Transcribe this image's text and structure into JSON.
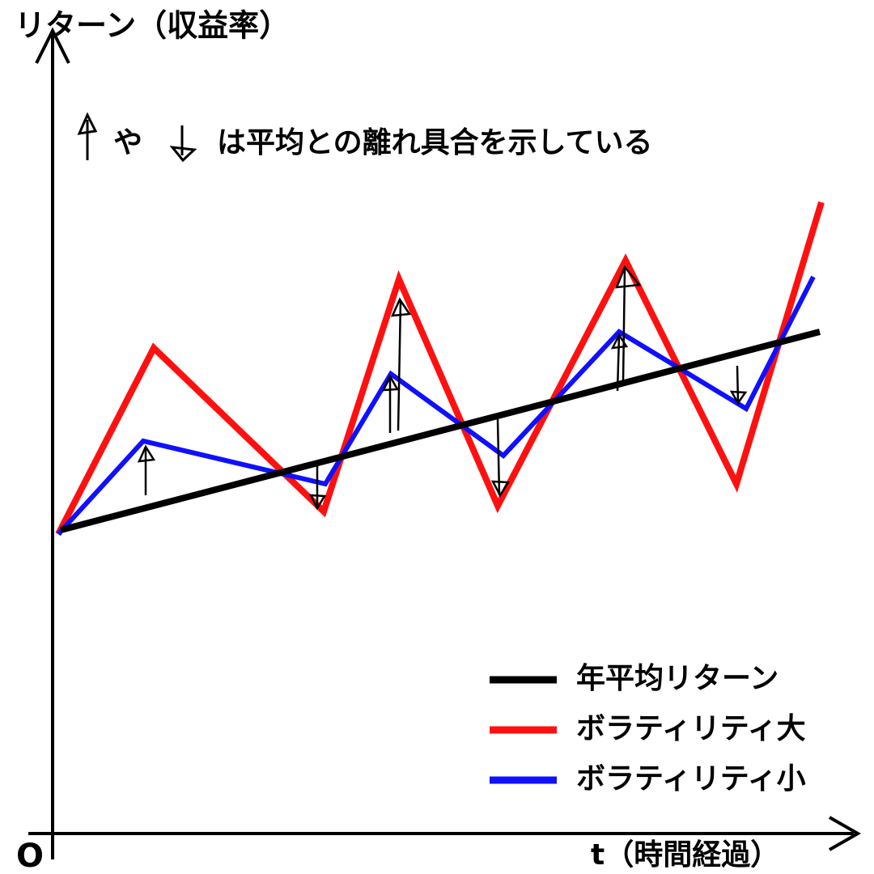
{
  "y_axis_label": "リターン（収益率）",
  "x_axis_label": "t（時間経過）",
  "origin": "O",
  "annotation": {
    "middle": "や",
    "rest": "は平均との離れ具合を示している"
  },
  "legend": [
    {
      "label": "年平均リターン"
    },
    {
      "label": "ボラティリティ大"
    },
    {
      "label": "ボラティリティ小"
    }
  ]
}
